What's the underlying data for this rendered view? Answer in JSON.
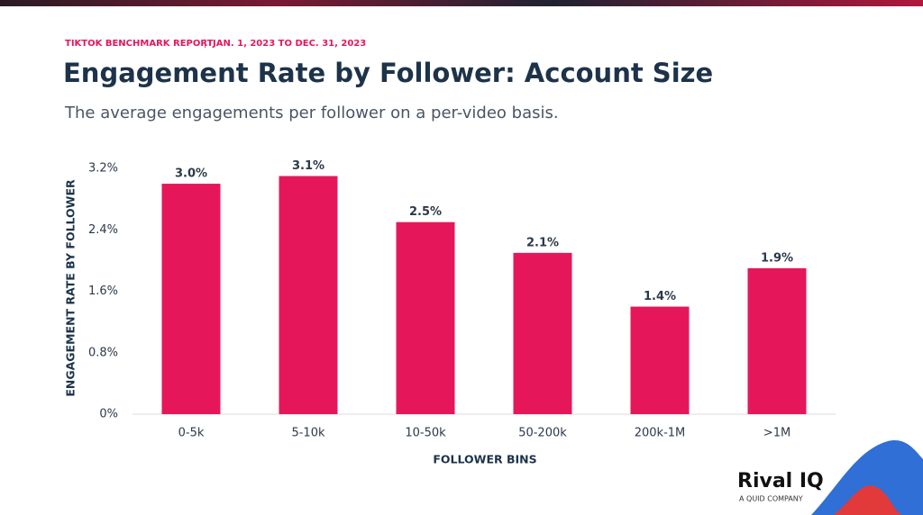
{
  "header": {
    "report": "TIKTOK BENCHMARK REPORT",
    "separator": "|",
    "dates": "JAN. 1, 2023 TO DEC. 31, 2023"
  },
  "branding": {
    "logo": "Rival IQ",
    "tagline": "A QUID COMPANY"
  },
  "chart_data": {
    "type": "bar",
    "title": "Engagement Rate by Follower: Account Size",
    "subtitle": "The average engagements per follower on a per-video basis.",
    "x_label": "FOLLOWER BINS",
    "y_label": "ENGAGEMENT RATE BY FOLLOWER",
    "categories": [
      "0-5k",
      "5-10k",
      "10-50k",
      "50-200k",
      "200k-1M",
      ">1M"
    ],
    "values": [
      3.0,
      3.1,
      2.5,
      2.1,
      1.4,
      1.9
    ],
    "value_labels": [
      "3.0%",
      "3.1%",
      "2.5%",
      "2.1%",
      "1.4%",
      "1.9%"
    ],
    "color": "#e5175a",
    "ylim": [
      0,
      3.2
    ],
    "yticks": [
      {
        "value": 0,
        "label": "0%"
      },
      {
        "value": 0.8,
        "label": "0.8%"
      },
      {
        "value": 1.6,
        "label": "1.6%"
      },
      {
        "value": 2.4,
        "label": "2.4%"
      },
      {
        "value": 3.2,
        "label": "3.2%"
      }
    ],
    "grid": false
  }
}
